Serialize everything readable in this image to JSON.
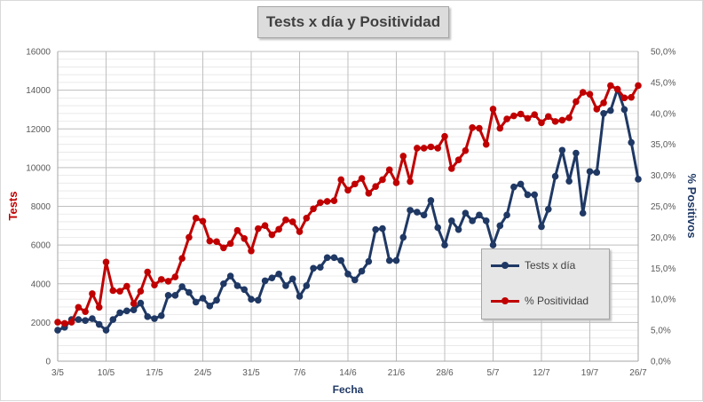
{
  "chart_data": {
    "type": "line",
    "title": "Tests x día y Positividad",
    "xlabel": "Fecha",
    "ylabel": "Tests",
    "y2label": "% Positivos",
    "ylim": [
      0,
      16000
    ],
    "y2lim": [
      0,
      0.5
    ],
    "yticks": [
      "0",
      "2000",
      "4000",
      "6000",
      "8000",
      "10000",
      "12000",
      "14000",
      "16000"
    ],
    "y2ticks": [
      "0,0%",
      "5,0%",
      "10,0%",
      "15,0%",
      "20,0%",
      "25,0%",
      "30,0%",
      "35,0%",
      "40,0%",
      "45,0%",
      "50,0%"
    ],
    "x_tick_labels": [
      "3/5",
      "10/5",
      "17/5",
      "24/5",
      "31/5",
      "7/6",
      "14/6",
      "21/6",
      "28/6",
      "5/7",
      "12/7",
      "19/7",
      "26/7"
    ],
    "x_start": "3/5",
    "legend_position": "right",
    "series": [
      {
        "name": "Tests x día",
        "axis": "left",
        "color": "#1f3864",
        "values": [
          1600,
          1750,
          2150,
          2150,
          2100,
          2200,
          1900,
          1600,
          2150,
          2500,
          2600,
          2650,
          3000,
          2300,
          2200,
          2350,
          3400,
          3400,
          3850,
          3550,
          3050,
          3250,
          2850,
          3150,
          4000,
          4400,
          3900,
          3700,
          3200,
          3150,
          4150,
          4300,
          4500,
          3900,
          4250,
          3350,
          3900,
          4800,
          4850,
          5350,
          5350,
          5200,
          4500,
          4200,
          4650,
          5150,
          6800,
          6850,
          5200,
          5200,
          6400,
          7800,
          7700,
          7550,
          8300,
          6900,
          6000,
          7250,
          6800,
          7650,
          7250,
          7550,
          7250,
          6000,
          7000,
          7550,
          9000,
          9150,
          8600,
          8600,
          6950,
          7850,
          9550,
          10900,
          9300,
          10750,
          7650,
          9800,
          9750,
          12800,
          12950,
          14050,
          13000,
          11300,
          9400
        ]
      },
      {
        "name": "% Positividad",
        "axis": "right",
        "color": "#c00000",
        "values": [
          0.063,
          0.061,
          0.063,
          0.087,
          0.08,
          0.109,
          0.087,
          0.16,
          0.114,
          0.113,
          0.121,
          0.093,
          0.113,
          0.144,
          0.123,
          0.132,
          0.129,
          0.136,
          0.166,
          0.2,
          0.231,
          0.226,
          0.194,
          0.193,
          0.183,
          0.19,
          0.211,
          0.198,
          0.178,
          0.214,
          0.219,
          0.204,
          0.213,
          0.228,
          0.225,
          0.209,
          0.231,
          0.246,
          0.256,
          0.258,
          0.259,
          0.293,
          0.276,
          0.286,
          0.295,
          0.271,
          0.282,
          0.293,
          0.309,
          0.288,
          0.331,
          0.29,
          0.344,
          0.344,
          0.346,
          0.344,
          0.363,
          0.311,
          0.325,
          0.34,
          0.377,
          0.376,
          0.35,
          0.407,
          0.376,
          0.391,
          0.396,
          0.399,
          0.392,
          0.398,
          0.385,
          0.395,
          0.387,
          0.389,
          0.393,
          0.419,
          0.434,
          0.431,
          0.407,
          0.417,
          0.445,
          0.439,
          0.425,
          0.426,
          0.445
        ]
      }
    ]
  }
}
